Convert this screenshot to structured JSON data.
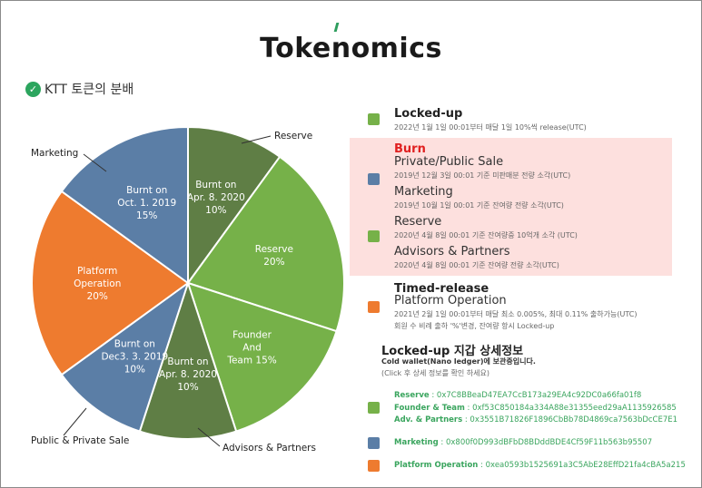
{
  "page": {
    "title": "Tokenomics",
    "subtitle": "KTT 토큰의 분배"
  },
  "colors": {
    "green_light": "#76b149",
    "green_dark": "#5f7e45",
    "blue": "#5b7ea6",
    "orange": "#ee7b2f",
    "burn_bg": "#fde0de",
    "red": "#e02020",
    "address_green": "#3aa55e"
  },
  "chart_data": {
    "type": "pie",
    "slices": [
      {
        "label": "Reserve",
        "inner": "Burnt on\nApr. 8. 2020\n10%",
        "value": 10,
        "color": "#5f7e45"
      },
      {
        "label": "",
        "inner": "Reserve\n20%",
        "value": 20,
        "color": "#76b149"
      },
      {
        "label": "",
        "inner": "Founder\nAnd\nTeam 15%",
        "value": 15,
        "color": "#76b149"
      },
      {
        "label": "Advisors & Partners",
        "inner": "Burnt on\nApr. 8. 2020\n10%",
        "value": 10,
        "color": "#5f7e45"
      },
      {
        "label": "Public & Private Sale",
        "inner": "Burnt on\nDec3. 3. 2019\n10%",
        "value": 10,
        "color": "#5b7ea6"
      },
      {
        "label": "",
        "inner": "Platform\nOperation\n20%",
        "value": 20,
        "color": "#ee7b2f"
      },
      {
        "label": "Marketing",
        "inner": "Burnt on\nOct. 1. 2019\n15%",
        "value": 15,
        "color": "#5b7ea6"
      }
    ]
  },
  "legend": {
    "locked_up": {
      "title": "Locked-up",
      "note": "2022년 1월 1일 00:01부터 매달 1일 10%씩 release(UTC)"
    },
    "burn": {
      "title": "Burn",
      "items": [
        {
          "name": "Private/Public Sale",
          "note": "2019년 12월 3일 00:01 기준 미판매분 전량 소각(UTC)"
        },
        {
          "name": "Marketing",
          "note": "2019년 10월 1일 00:01 기준 잔여량 전량 소각(UTC)"
        },
        {
          "name": "Reserve",
          "note": "2020년 4월 8일 00:01 기준 잔여량중 10억개 소각 (UTC)"
        },
        {
          "name": "Advisors & Partners",
          "note": "2020년 4월 8일 00:01 기준 잔여량 전량 소각(UTC)"
        }
      ]
    },
    "timed_release": {
      "title": "Timed-release",
      "name": "Platform Operation",
      "note1": "2021년 2월 1일 00:01부터 매달 최소 0.005%, 최대 0.11% 출하가능(UTC)",
      "note2": "회원 수 비례 출하 '%'변경, 잔여량 항시 Locked-up"
    }
  },
  "details": {
    "title": "Locked-up 지갑 상세정보",
    "subtitle": "Cold wallet(Nano ledger)에 보관중입니다.",
    "hint": "(Click 후 상세 정보를 확인 하세요)",
    "wallets_green": [
      {
        "label": "Reserve",
        "address": "0x7C8BBeaD47EA7CcB173a29EA4c92DC0a66fa01f8"
      },
      {
        "label": "Founder & Team",
        "address": "0xf53C850184a334A88e31355eed29aA1135926585"
      },
      {
        "label": "Adv. & Partners",
        "address": "0x3551B71826F1896CbBb78D4869ca7563bDcCE7E1"
      }
    ],
    "wallet_blue": {
      "label": "Marketing",
      "address": "0x800f0D993dBFbD8BDddBDE4Cf59F11b563b95507"
    },
    "wallet_orange": {
      "label": "Platform Operation",
      "address": "0xea0593b1525691a3C5AbE28EffD21fa4cBA5a215"
    }
  }
}
